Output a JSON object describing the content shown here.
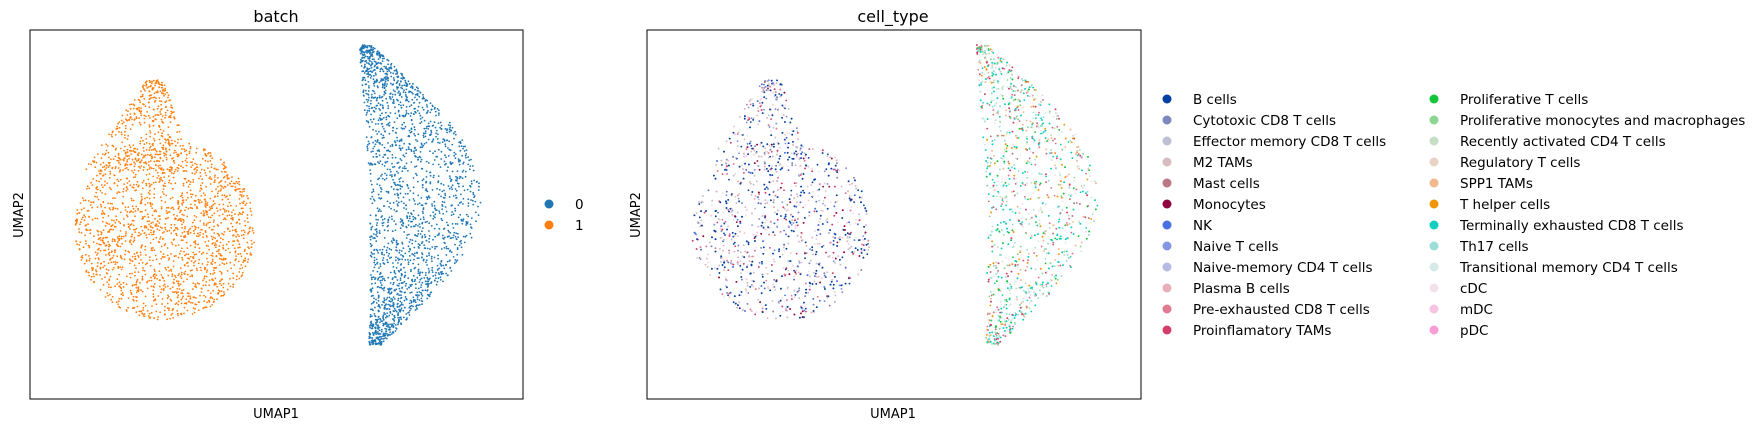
{
  "chart_data": [
    {
      "type": "scatter",
      "title": "batch",
      "xlabel": "UMAP1",
      "ylabel": "UMAP2",
      "ticks": "none",
      "grid": false,
      "legend_position": "right",
      "series": [
        {
          "name": "0",
          "color": "#1f77b4",
          "cluster": "right-crescent",
          "approx_points": 9000
        },
        {
          "name": "1",
          "color": "#ff7f0e",
          "cluster": "left-blob",
          "approx_points": 9000
        }
      ]
    },
    {
      "type": "scatter",
      "title": "cell_type",
      "xlabel": "UMAP1",
      "ylabel": "UMAP2",
      "ticks": "none",
      "grid": false,
      "legend_position": "right",
      "legend_columns": 2,
      "series": [
        {
          "name": "B cells",
          "color": "#023fa5"
        },
        {
          "name": "Cytotoxic CD8 T cells",
          "color": "#7d87b9"
        },
        {
          "name": "Effector memory CD8 T cells",
          "color": "#bec1d4"
        },
        {
          "name": "M2 TAMs",
          "color": "#d6bcc0"
        },
        {
          "name": "Mast cells",
          "color": "#bb7784"
        },
        {
          "name": "Monocytes",
          "color": "#8e063b"
        },
        {
          "name": "NK",
          "color": "#4a6fe3"
        },
        {
          "name": "Naive T cells",
          "color": "#8595e1"
        },
        {
          "name": "Naive-memory CD4 T cells",
          "color": "#b5bbe3"
        },
        {
          "name": "Plasma B cells",
          "color": "#e6afb9"
        },
        {
          "name": "Pre-exhausted CD8 T cells",
          "color": "#e07b91"
        },
        {
          "name": "Proinflamatory TAMs",
          "color": "#d33f6a"
        },
        {
          "name": "Proliferative T cells",
          "color": "#11c638"
        },
        {
          "name": "Proliferative monocytes and macrophages",
          "color": "#8dd593"
        },
        {
          "name": "Recently activated CD4 T cells",
          "color": "#c6dec7"
        },
        {
          "name": "Regulatory T cells",
          "color": "#ead3c6"
        },
        {
          "name": "SPP1 TAMs",
          "color": "#f0b98d"
        },
        {
          "name": "T helper cells",
          "color": "#ef9708"
        },
        {
          "name": "Terminally exhausted CD8 T cells",
          "color": "#0fcfc0"
        },
        {
          "name": "Th17 cells",
          "color": "#9cded6"
        },
        {
          "name": "Transitional memory CD4 T cells",
          "color": "#d5eae7"
        },
        {
          "name": "cDC",
          "color": "#f3e1eb"
        },
        {
          "name": "mDC",
          "color": "#f6c4e1"
        },
        {
          "name": "pDC",
          "color": "#f79cd4"
        }
      ]
    }
  ]
}
